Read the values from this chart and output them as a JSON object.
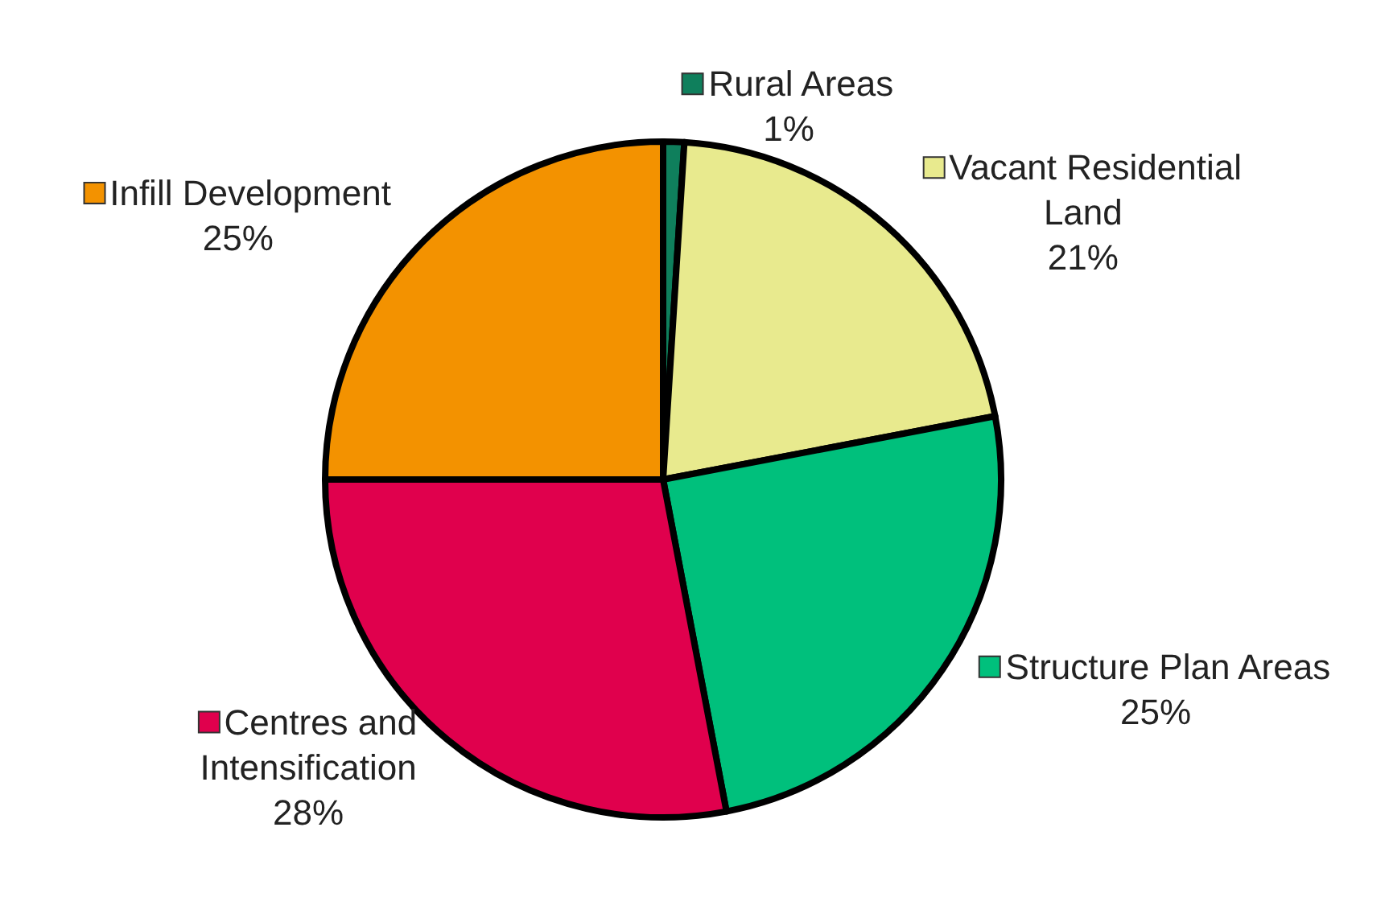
{
  "chart_data": {
    "type": "pie",
    "categories": [
      "Rural Areas",
      "Vacant Residential Land",
      "Structure Plan Areas",
      "Centres and Intensification",
      "Infill Development"
    ],
    "values": [
      1,
      21,
      25,
      28,
      25
    ],
    "value_labels": [
      "1%",
      "21%",
      "25%",
      "28%",
      "25%"
    ],
    "colors": [
      "#0f7f5c",
      "#e8ea8e",
      "#00c07c",
      "#e0004d",
      "#f39200"
    ],
    "legend": true
  }
}
